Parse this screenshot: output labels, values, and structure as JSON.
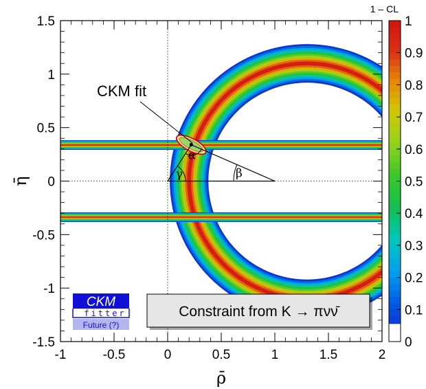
{
  "chart_data": {
    "type": "heatmap",
    "title": "",
    "xlabel": "ρ̄",
    "ylabel": "η̄",
    "xlim": [
      -1,
      2
    ],
    "ylim": [
      -1.5,
      1.5
    ],
    "x_ticks": [
      "-1",
      "-0.5",
      "0",
      "0.5",
      "1",
      "1.5",
      "2"
    ],
    "y_ticks": [
      "-1.5",
      "-1",
      "-0.5",
      "0",
      "0.5",
      "1",
      "1.5"
    ],
    "colorbar": {
      "title": "1 – CL",
      "range": [
        0,
        1
      ],
      "ticks": [
        "0",
        "0.1",
        "0.2",
        "0.3",
        "0.4",
        "0.5",
        "0.6",
        "0.7",
        "0.8",
        "0.9",
        "1"
      ]
    },
    "grid": false,
    "reference_lines": [
      "x = 0 (dotted)",
      "y = 0 (dotted)"
    ],
    "constraints": {
      "kaon_ring": {
        "center": [
          1.3,
          0
        ],
        "radius": 1.1,
        "half_width": 0.18
      },
      "eta_bands": [
        {
          "center": 0.337,
          "half_width": 0.045
        },
        {
          "center": -0.337,
          "half_width": 0.045
        }
      ]
    },
    "ckm_fit": {
      "rho": 0.22,
      "eta": 0.34
    },
    "triangle": {
      "vertices": [
        [
          0,
          0
        ],
        [
          1,
          0
        ],
        [
          0.22,
          0.34
        ]
      ],
      "angle_labels": [
        "α",
        "β",
        "γ"
      ]
    },
    "annotations": {
      "ckm_fit_label": "CKM fit",
      "constraint_label": "Constraint from K → πνν̄"
    },
    "logo": {
      "line1": "CKM",
      "line2": "fitter",
      "line3": "Future (?)"
    }
  }
}
